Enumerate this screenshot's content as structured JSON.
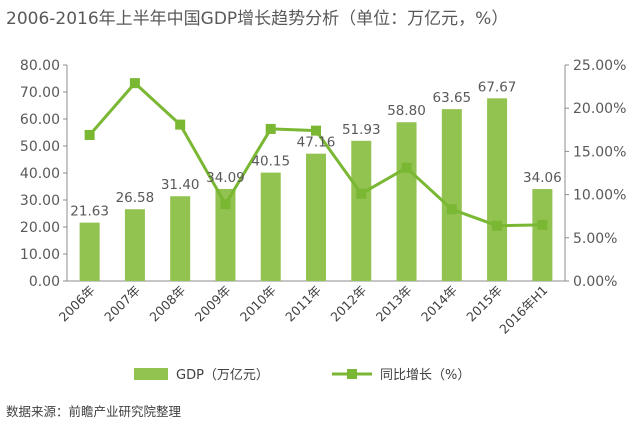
{
  "title": "2006-2016年上半年中国GDP增长趋势分析（单位：万亿元，%）",
  "source": "数据来源：前瞻产业研究院整理",
  "chart_data": {
    "type": "bar+line",
    "categories": [
      "2006年",
      "2007年",
      "2008年",
      "2009年",
      "2010年",
      "2011年",
      "2012年",
      "2013年",
      "2014年",
      "2015年",
      "2016年H1"
    ],
    "series": [
      {
        "name": "GDP（万亿元）",
        "type": "bar",
        "axis": "left",
        "color": "#92c250",
        "values": [
          21.63,
          26.58,
          31.4,
          34.09,
          40.15,
          47.16,
          51.93,
          58.8,
          63.65,
          67.67,
          34.06
        ],
        "labels": [
          "21.63",
          "26.58",
          "31.40",
          "34.09",
          "40.15",
          "47.16",
          "51.93",
          "58.80",
          "63.65",
          "67.67",
          "34.06"
        ]
      },
      {
        "name": "同比增长（%）",
        "type": "line",
        "axis": "right",
        "color": "#7ab733",
        "values": [
          16.9,
          22.9,
          18.1,
          8.9,
          17.6,
          17.4,
          10.1,
          13.1,
          8.3,
          6.4,
          6.5
        ]
      }
    ],
    "y_left": {
      "min": 0,
      "max": 80,
      "step": 10,
      "ticks": [
        "0.00",
        "10.00",
        "20.00",
        "30.00",
        "40.00",
        "50.00",
        "60.00",
        "70.00",
        "80.00"
      ]
    },
    "y_right": {
      "min": 0,
      "max": 25,
      "step": 5,
      "ticks": [
        "0.00%",
        "5.00%",
        "10.00%",
        "15.00%",
        "20.00%",
        "25.00%"
      ]
    },
    "grid": false,
    "legend": "bottom"
  }
}
